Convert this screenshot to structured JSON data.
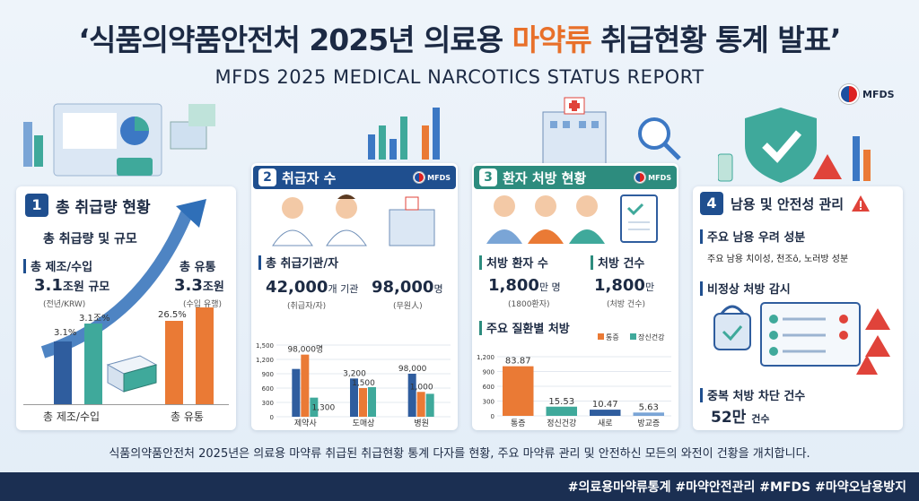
{
  "header": {
    "title_pre": "‘식품의약품안전처 2025년 의료용 ",
    "title_hl": "마약류",
    "title_post": " 취급현황 통계 발표’",
    "subtitle": "MFDS 2025 MEDICAL NARCOTICS STATUS REPORT",
    "org": "MFDS"
  },
  "s1": {
    "num": "1",
    "title": "총 취급량 현황",
    "subtitle": "총 취급량 및 규모",
    "a_label": "총 제조/수입",
    "a_value": "3.1",
    "a_unit": "조원 규모",
    "a_note": "(전년/KRW)",
    "b_label": "총 유통",
    "b_value": "3.3",
    "b_unit": "조원",
    "b_note": "(수입 유행)",
    "bar_labels": [
      "3.1%",
      "3.1조%",
      "26.5%"
    ],
    "cat1": "총 제조/수입",
    "cat2": "총 유통"
  },
  "s2": {
    "num": "2",
    "title": "취급자 수",
    "org": "MFDS",
    "heading": "총 취급기관/자",
    "v1": "42,000",
    "v1_unit": "개 기관",
    "v1_note": "(취급자/자)",
    "v2": "98,000",
    "v2_unit": "명",
    "v2_note": "(무원人)"
  },
  "s3": {
    "num": "3",
    "title": "환자 처방 현황",
    "org": "MFDS",
    "h1": "처방 환자 수",
    "v1": "1,800",
    "v1_unit": "만 명",
    "v1_note": "(1800환자)",
    "h2": "처방 건수",
    "v2": "1,800",
    "v2_unit": "만",
    "v2_note": "(처방 건수)",
    "h3": "주요 질환별 처방"
  },
  "s4": {
    "num": "4",
    "title": "남용 및 안전성 관리",
    "h1": "주요 남용 우려 성분",
    "t1": "주요 남용 치이성, 천조ô, 노러방 성분",
    "h2": "비정상 처방 감시",
    "h3": "중복 처방 차단 건수",
    "v3": "52만",
    "v3_unit": "건수"
  },
  "footer": {
    "text": "식품의약품안전처 2025년은 의료용 마약류 취급된 취급현황 통계 다자를 현황, 주요 마약류 관리 및 안전하신 모든의 와전이 건황을 개치합니다.",
    "tags": "#의료용마약류통계 #마약안전관리 #MFDS #마약오남용방지"
  },
  "colors": {
    "blue": "#2f5d9e",
    "orange": "#ea7a35",
    "teal": "#3fa99b",
    "navy": "#1b2f52",
    "red": "#e0433a"
  },
  "chart_data": [
    {
      "type": "bar",
      "categories": [
        "제약사",
        "도매상",
        "병원"
      ],
      "ylim": [
        0,
        1500
      ],
      "yticks": [
        "0",
        "300",
        "600",
        "900",
        "1,200",
        "1,500"
      ],
      "series": [
        {
          "values": [
            1000,
            800,
            900
          ]
        },
        {
          "values": [
            1300,
            600,
            520
          ]
        },
        {
          "values": [
            400,
            620,
            480
          ]
        }
      ],
      "labels": [
        "98,000명",
        "1,300",
        "3,200",
        "1,500",
        "98,000",
        "1,000"
      ]
    },
    {
      "type": "bar",
      "categories": [
        "통증",
        "정신건강",
        "새로",
        "방교증"
      ],
      "legend": [
        "통증",
        "장신건강"
      ],
      "ylim": [
        0,
        1200
      ],
      "yticks": [
        "0",
        "300",
        "600",
        "900",
        "1,200"
      ],
      "values": [
        83.87,
        15.53,
        10.47,
        5.63
      ],
      "value_labels": [
        "83.87",
        "15.53",
        "10.47",
        "5.63"
      ]
    }
  ]
}
